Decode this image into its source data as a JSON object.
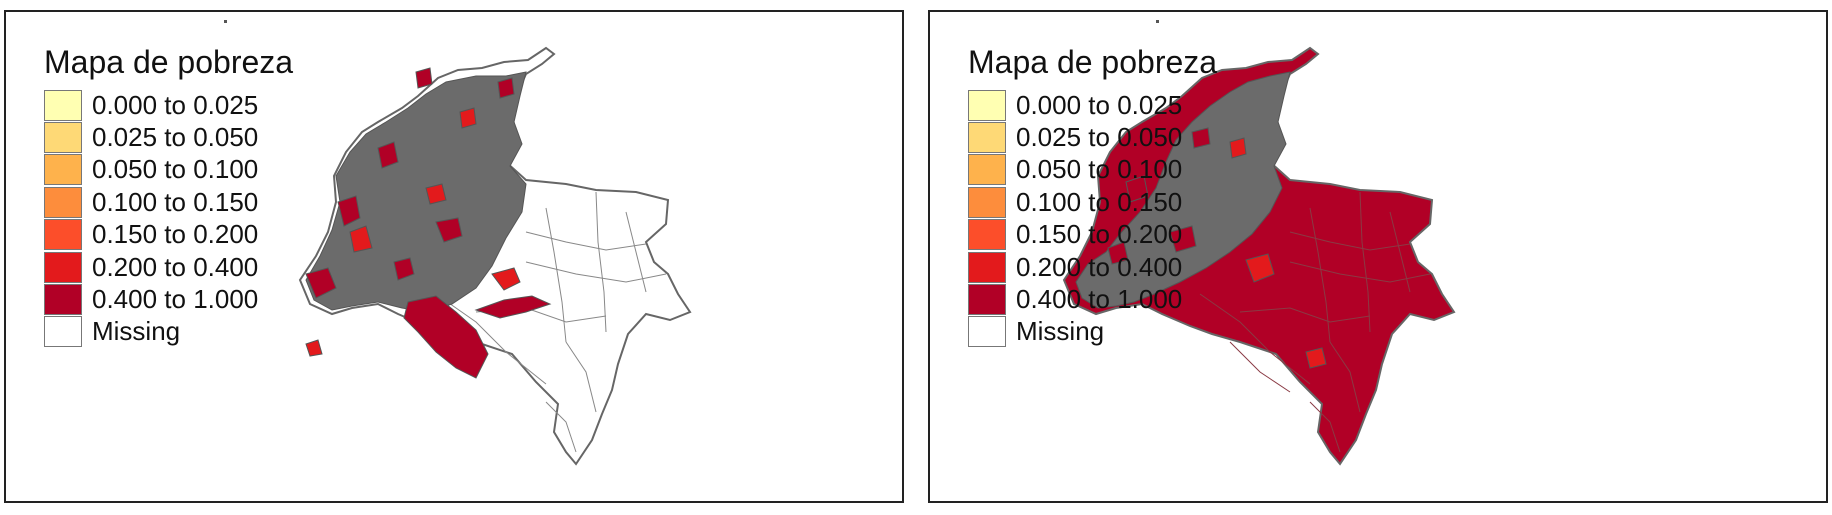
{
  "panels": [
    {
      "legend": {
        "title": "Mapa de pobreza",
        "items": [
          {
            "label": "0.000 to 0.025",
            "color": "#ffffb2"
          },
          {
            "label": "0.025 to 0.050",
            "color": "#fed976"
          },
          {
            "label": "0.050 to 0.100",
            "color": "#feb24c"
          },
          {
            "label": "0.100 to 0.150",
            "color": "#fd8d3c"
          },
          {
            "label": "0.150 to 0.200",
            "color": "#fc4e2a"
          },
          {
            "label": "0.200 to 0.400",
            "color": "#e31a1c"
          },
          {
            "label": "0.400 to 1.000",
            "color": "#b10026"
          },
          {
            "label": "Missing",
            "color": "#ffffff"
          }
        ]
      }
    },
    {
      "legend": {
        "title": "Mapa de pobreza",
        "items": [
          {
            "label": "0.000 to 0.025",
            "color": "#ffffb2"
          },
          {
            "label": "0.025 to 0.050",
            "color": "#fed976"
          },
          {
            "label": "0.050 to 0.100",
            "color": "#feb24c"
          },
          {
            "label": "0.100 to 0.150",
            "color": "#fd8d3c"
          },
          {
            "label": "0.150 to 0.200",
            "color": "#fc4e2a"
          },
          {
            "label": "0.200 to 0.400",
            "color": "#e31a1c"
          },
          {
            "label": "0.400 to 1.000",
            "color": "#b10026"
          },
          {
            "label": "Missing",
            "color": "#ffffff"
          }
        ]
      }
    }
  ],
  "colors": {
    "border": "#666666",
    "dense": "#6b6b6b",
    "high": "#b10026",
    "mid": "#e31a1c",
    "missing": "#ffffff"
  }
}
